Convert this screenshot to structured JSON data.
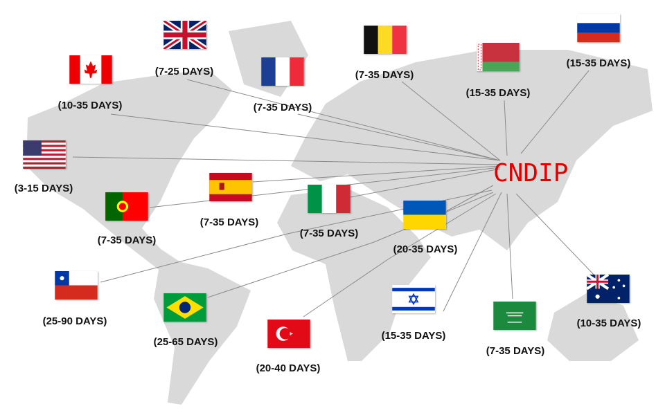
{
  "hub": {
    "label": "CNDIP",
    "color": "#e00000"
  },
  "map": {
    "land_color": "#d9d9d9",
    "line_color": "#8a8a8a"
  },
  "countries": [
    {
      "flag": "united-kingdom",
      "days": "(7-25 DAYS)"
    },
    {
      "flag": "canada",
      "days": "(10-35 DAYS)"
    },
    {
      "flag": "france",
      "days": "(7-35 DAYS)"
    },
    {
      "flag": "belgium",
      "days": "(7-35 DAYS)"
    },
    {
      "flag": "belarus",
      "days": "(15-35 DAYS)"
    },
    {
      "flag": "russia",
      "days": "(15-35 DAYS)"
    },
    {
      "flag": "united-states",
      "days": "(3-15 DAYS)"
    },
    {
      "flag": "spain",
      "days": "(7-35 DAYS)"
    },
    {
      "flag": "portugal",
      "days": "(7-35 DAYS)"
    },
    {
      "flag": "italy",
      "days": "(7-35 DAYS)"
    },
    {
      "flag": "ukraine",
      "days": "(20-35 DAYS)"
    },
    {
      "flag": "chile",
      "days": "(25-90 DAYS)"
    },
    {
      "flag": "brazil",
      "days": "(25-65 DAYS)"
    },
    {
      "flag": "turkey",
      "days": "(20-40 DAYS)"
    },
    {
      "flag": "israel",
      "days": "(15-35 DAYS)"
    },
    {
      "flag": "saudi-arabia",
      "days": "(7-35 DAYS)"
    },
    {
      "flag": "australia",
      "days": "(10-35 DAYS)"
    }
  ]
}
